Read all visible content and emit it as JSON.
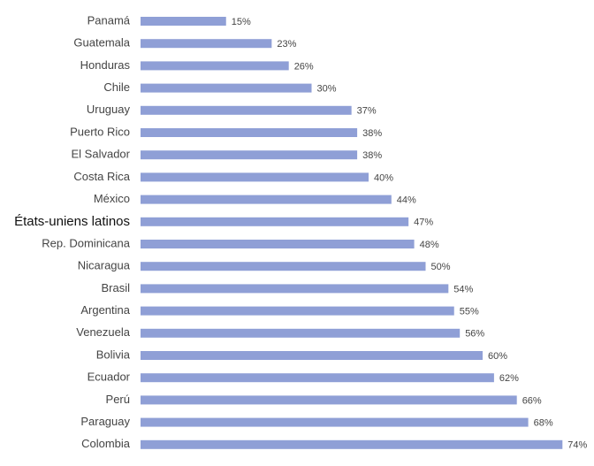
{
  "chart_data": {
    "type": "hbar",
    "categories": [
      "Panamá",
      "Guatemala",
      "Honduras",
      "Chile",
      "Uruguay",
      "Puerto Rico",
      "El Salvador",
      "Costa Rica",
      "México",
      "États-uniens latinos",
      "Rep. Dominicana",
      "Nicaragua",
      "Brasil",
      "Argentina",
      "Venezuela",
      "Bolivia",
      "Ecuador",
      "Perú",
      "Paraguay",
      "Colombia"
    ],
    "values": [
      15,
      23,
      26,
      30,
      37,
      38,
      38,
      40,
      44,
      47,
      48,
      50,
      54,
      55,
      56,
      60,
      62,
      66,
      68,
      74
    ],
    "value_labels": [
      "15%",
      "23%",
      "26%",
      "30%",
      "37%",
      "38%",
      "38%",
      "40%",
      "44%",
      "47%",
      "48%",
      "50%",
      "54%",
      "55%",
      "56%",
      "60%",
      "62%",
      "66%",
      "68%",
      "74%"
    ],
    "color": "#8f9fd6",
    "highlight": 9
  }
}
